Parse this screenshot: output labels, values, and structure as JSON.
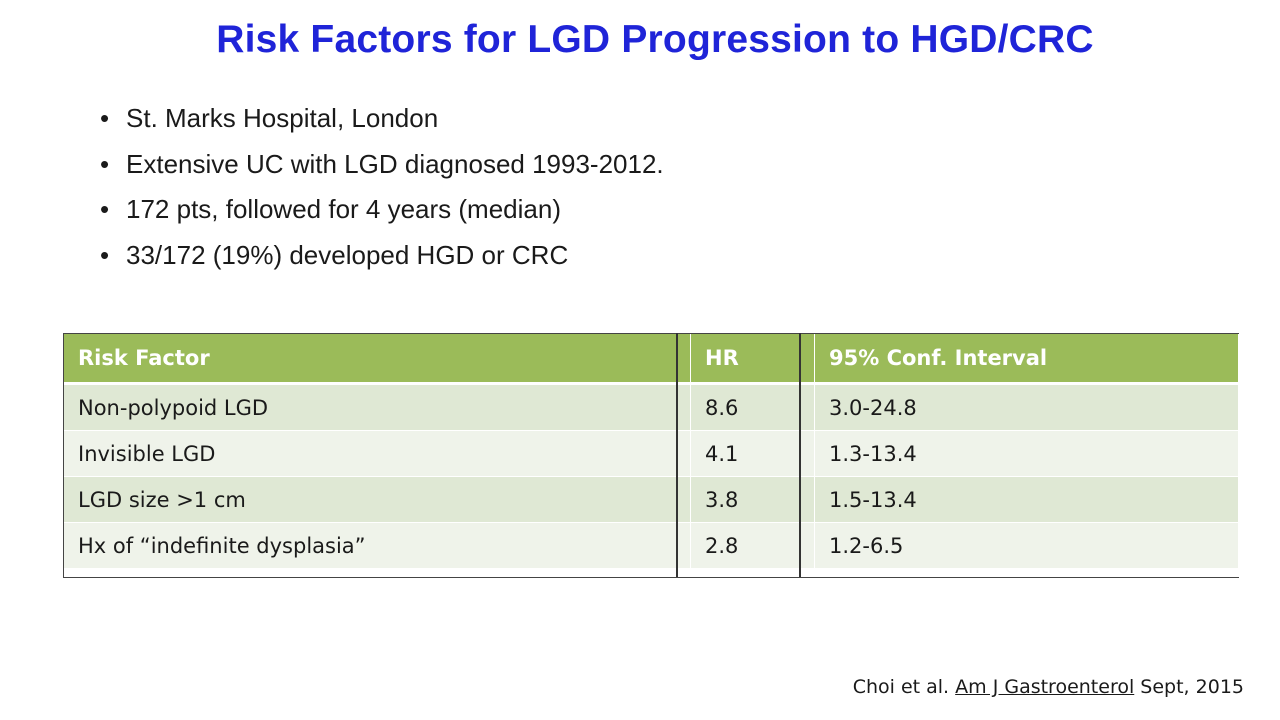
{
  "slide": {
    "title": "Risk Factors for LGD Progression to HGD/CRC",
    "bullets": [
      "St. Marks Hospital, London",
      "Extensive UC with LGD diagnosed 1993-2012.",
      "172 pts, followed for 4 years (median)",
      "33/172 (19%) developed HGD or CRC"
    ],
    "bullet_glyph": "•"
  },
  "table": {
    "headers": [
      "Risk Factor",
      "HR",
      "95% Conf. Interval"
    ],
    "rows": [
      [
        "Non-polypoid LGD",
        "8.6",
        "3.0-24.8"
      ],
      [
        "Invisible LGD",
        "4.1",
        "1.3-13.4"
      ],
      [
        "LGD size >1 cm",
        "3.8",
        "1.5-13.4"
      ],
      [
        "Hx of “indefinite dysplasia”",
        "2.8",
        "1.2-6.5"
      ]
    ],
    "colors": {
      "header": "#9bbb59",
      "row_odd": "#dfe8d4",
      "row_even": "#eff3ea"
    }
  },
  "citation": {
    "prefix": "Choi et al.",
    "journal": "Am J Gastroenterol",
    "suffix": "Sept, 2015"
  },
  "colors": {
    "title": "#1f24d8"
  }
}
